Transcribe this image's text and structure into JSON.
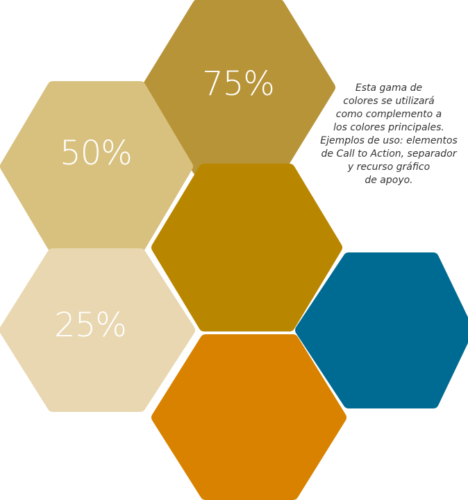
{
  "swatches": [
    {
      "name": "gold-75",
      "color": "#b79438",
      "label": "75%"
    },
    {
      "name": "gold-50",
      "color": "#d8c17f",
      "label": "50%"
    },
    {
      "name": "gold-25",
      "color": "#e8d7b0",
      "label": "25%"
    },
    {
      "name": "gold-100",
      "color": "#b98600",
      "label": ""
    },
    {
      "name": "blue",
      "color": "#006b92",
      "label": ""
    },
    {
      "name": "orange",
      "color": "#d98200",
      "label": ""
    }
  ],
  "description": {
    "lines": [
      "Esta gama de",
      "colores se utilizará",
      "como complemento a",
      "los colores principales.",
      "Ejemplos de uso: elementos",
      "de Call to Action, separador",
      "y recurso gráfico",
      "de apoyo."
    ]
  }
}
